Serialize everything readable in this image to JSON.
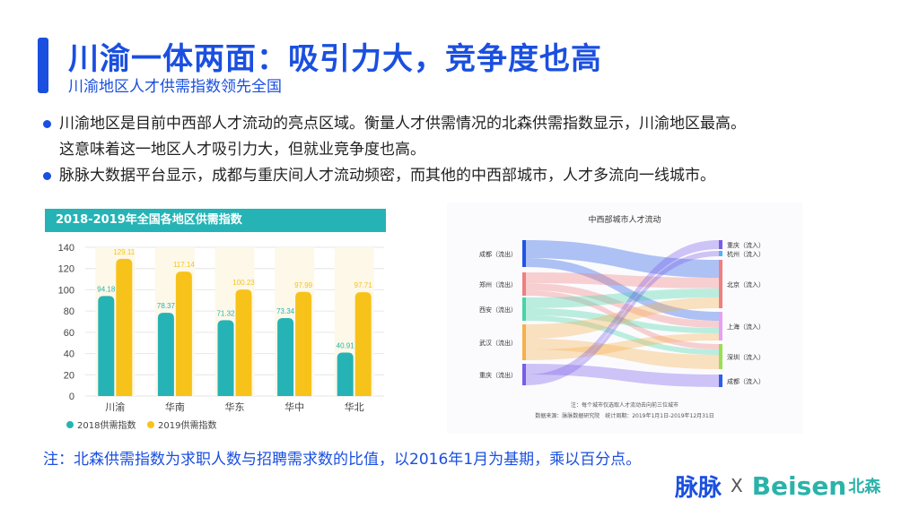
{
  "slide": {
    "title": "川渝一体两面：吸引力大，竞争度也高",
    "subtitle": "川渝地区人才供需指数领先全国",
    "bullets": [
      "川渝地区是目前中西部人才流动的亮点区域。衡量人才供需情况的北森供需指数显示，川渝地区最高。",
      "这意味着这一地区人才吸引力大，但就业竞争度也高。",
      "脉脉大数据平台显示，成都与重庆间人才流动频密，而其他的中西部城市，人才多流向一线城市。"
    ],
    "note": "注：北森供需指数为求职人数与招聘需求数的比值，以2016年1月为基期，乘以百分点。",
    "logo_left": "脉脉",
    "logo_x": "X",
    "logo_right": "Beisen",
    "logo_right_cn": "北森"
  },
  "colors": {
    "accent": "#1a4fe0",
    "teal": "#26b3b5",
    "yellow": "#f7c31a"
  },
  "chart_data": [
    {
      "type": "bar",
      "title": "2018-2019年全国各地区供需指数",
      "categories": [
        "川渝",
        "华南",
        "华东",
        "华中",
        "华北"
      ],
      "series": [
        {
          "name": "2018供需指数",
          "values": [
            94.18,
            78.37,
            71.32,
            73.34,
            40.91
          ]
        },
        {
          "name": "2019供需指数",
          "values": [
            129.11,
            117.14,
            100.23,
            97.99,
            97.71
          ]
        }
      ],
      "ylim": [
        0,
        140
      ],
      "yticks": [
        0,
        20,
        40,
        60,
        80,
        100,
        120,
        140
      ],
      "legend": "bottom-left"
    },
    {
      "type": "sankey",
      "title": "中西部城市人才流动",
      "sources": [
        "成都（流出）",
        "郑州（流出）",
        "西安（流出）",
        "武汉（流出）",
        "重庆（流出）"
      ],
      "targets": [
        "重庆（流入）",
        "杭州（流入）",
        "北京（流入）",
        "上海（流入）",
        "深圳（流入）",
        "成都（流入）"
      ],
      "footnote_1": "注：每个城市仅选取人才流动去向前三位城市",
      "footnote_2": "数据来源：脉脉数据研究院　统计周期：2019年1月1日-2019年12月31日"
    }
  ]
}
